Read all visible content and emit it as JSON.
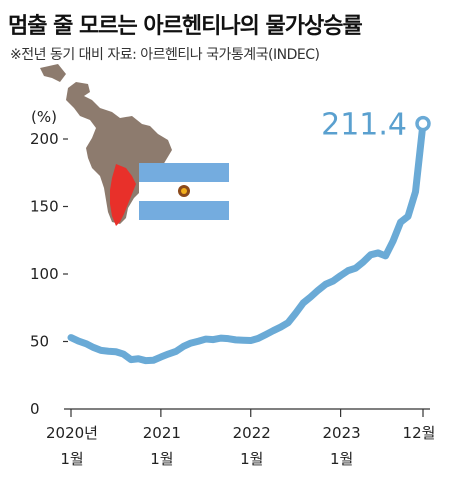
{
  "title": "멈출 줄 모르는 아르헨티나의 물가상승률",
  "subtitle": "※전년 동기 대비  자료: 아르헨티나 국가통계국(INDEC)",
  "colors": {
    "line": "#6aaad6",
    "text": "#222222",
    "flag_blue": "#74acdf",
    "map_red": "#e8302a",
    "map_gray": "#8d7b6e"
  },
  "chart_data": {
    "type": "line",
    "title": "멈출 줄 모르는 아르헨티나의 물가상승률",
    "subtitle": "※전년 동기 대비  자료: 아르헨티나 국가통계국(INDEC)",
    "ylabel": "(%)",
    "ylim": [
      0,
      220
    ],
    "yticks": [
      "0",
      "50",
      "100",
      "150",
      "200"
    ],
    "xticks": [
      {
        "label": [
          "2020년",
          "1월"
        ],
        "x": "2020-01"
      },
      {
        "label": [
          "2021",
          "1월"
        ],
        "x": "2021-01"
      },
      {
        "label": [
          "2022",
          "1월"
        ],
        "x": "2022-01"
      },
      {
        "label": [
          "2023",
          "1월"
        ],
        "x": "2023-01"
      },
      {
        "label": [
          "12월"
        ],
        "x": "2023-12"
      }
    ],
    "annotation": "211.4",
    "series": [
      {
        "x": [
          "2020-01",
          "2020-02",
          "2020-03",
          "2020-04",
          "2020-05",
          "2020-06",
          "2020-07",
          "2020-08",
          "2020-09",
          "2020-10",
          "2020-11",
          "2020-12",
          "2021-01",
          "2021-02",
          "2021-03",
          "2021-04",
          "2021-05",
          "2021-06",
          "2021-07",
          "2021-08",
          "2021-09",
          "2021-10",
          "2021-11",
          "2021-12",
          "2022-01",
          "2022-02",
          "2022-03",
          "2022-04",
          "2022-05",
          "2022-06",
          "2022-07",
          "2022-08",
          "2022-09",
          "2022-10",
          "2022-11",
          "2022-12",
          "2023-01",
          "2023-02",
          "2023-03",
          "2023-04",
          "2023-05",
          "2023-06",
          "2023-07",
          "2023-08",
          "2023-09",
          "2023-10",
          "2023-11",
          "2023-12"
        ],
        "values": [
          52.9,
          50.3,
          48.4,
          45.6,
          43.4,
          42.8,
          42.4,
          40.7,
          36.6,
          37.2,
          35.8,
          36.1,
          38.5,
          40.7,
          42.6,
          46.3,
          48.8,
          50.2,
          51.8,
          51.4,
          52.5,
          52.1,
          51.2,
          50.9,
          50.7,
          52.3,
          55.1,
          58.0,
          60.7,
          64.0,
          71.0,
          78.5,
          83.0,
          88.0,
          92.4,
          94.8,
          98.8,
          102.5,
          104.3,
          108.8,
          114.2,
          115.6,
          113.4,
          124.4,
          138.3,
          142.7,
          160.9,
          211.4
        ]
      }
    ]
  },
  "illustration": {
    "map": "south-america-map",
    "flag": "argentina-flag"
  }
}
